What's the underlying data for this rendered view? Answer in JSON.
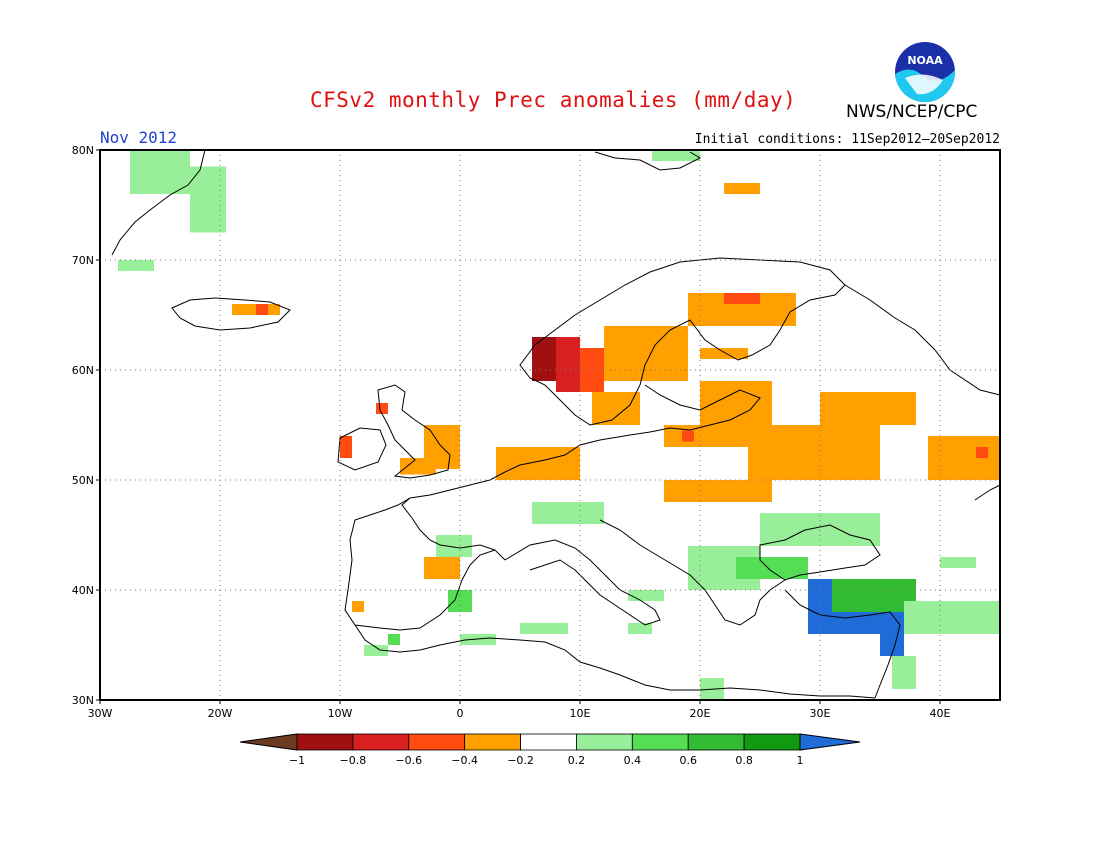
{
  "header": {
    "title": "CFSv2 monthly Prec anomalies (mm/day)",
    "organization": "NWS/NCEP/CPC",
    "logo_text": "NOAA",
    "month": "Nov 2012",
    "initial_conditions": "Initial conditions: 11Sep2012–20Sep2012"
  },
  "map": {
    "lon_range": [
      -30,
      45
    ],
    "lat_range": [
      30,
      80
    ],
    "grid_lines": "dotted",
    "lat_labels": [
      "80N",
      "70N",
      "60N",
      "50N",
      "40N",
      "30N"
    ],
    "lat_values": [
      80,
      70,
      60,
      50,
      40,
      30
    ],
    "lon_labels": [
      "30W",
      "20W",
      "10W",
      "0",
      "10E",
      "20E",
      "30E",
      "40E"
    ],
    "lon_values": [
      -30,
      -20,
      -10,
      0,
      10,
      20,
      30,
      40
    ],
    "anomaly_regions": [
      {
        "lon": [
          -27.5,
          -22.5
        ],
        "lat": [
          76,
          80
        ],
        "value": 0.3
      },
      {
        "lon": [
          -22.5,
          -19.5
        ],
        "lat": [
          72.5,
          78.5
        ],
        "value": 0.3
      },
      {
        "lon": [
          -28.5,
          -25.5
        ],
        "lat": [
          69,
          70
        ],
        "value": 0.3
      },
      {
        "lon": [
          -19,
          -15
        ],
        "lat": [
          65,
          66
        ],
        "value": -0.3
      },
      {
        "lon": [
          -17,
          -16
        ],
        "lat": [
          65,
          66
        ],
        "value": -0.5
      },
      {
        "lon": [
          16,
          20
        ],
        "lat": [
          79,
          80
        ],
        "value": 0.3
      },
      {
        "lon": [
          22,
          25
        ],
        "lat": [
          76,
          77
        ],
        "value": -0.3
      },
      {
        "lon": [
          6,
          8
        ],
        "lat": [
          59,
          63
        ],
        "value": -0.9
      },
      {
        "lon": [
          8,
          10
        ],
        "lat": [
          58,
          63
        ],
        "value": -0.7
      },
      {
        "lon": [
          10,
          12
        ],
        "lat": [
          58,
          62
        ],
        "value": -0.5
      },
      {
        "lon": [
          12,
          19
        ],
        "lat": [
          59,
          64
        ],
        "value": -0.3
      },
      {
        "lon": [
          11,
          15
        ],
        "lat": [
          55,
          58
        ],
        "value": -0.3
      },
      {
        "lon": [
          19,
          28
        ],
        "lat": [
          64,
          67
        ],
        "value": -0.3
      },
      {
        "lon": [
          22,
          25
        ],
        "lat": [
          66,
          67
        ],
        "value": -0.5
      },
      {
        "lon": [
          20,
          24
        ],
        "lat": [
          61,
          62
        ],
        "value": -0.3
      },
      {
        "lon": [
          20,
          26
        ],
        "lat": [
          55,
          59
        ],
        "value": -0.3
      },
      {
        "lon": [
          17,
          24
        ],
        "lat": [
          53,
          55
        ],
        "value": -0.3
      },
      {
        "lon": [
          18.5,
          19.5
        ],
        "lat": [
          53.5,
          54.5
        ],
        "value": -0.5
      },
      {
        "lon": [
          24,
          35
        ],
        "lat": [
          50,
          55
        ],
        "value": -0.3
      },
      {
        "lon": [
          30,
          38
        ],
        "lat": [
          55,
          58
        ],
        "value": -0.3
      },
      {
        "lon": [
          39,
          45
        ],
        "lat": [
          50,
          54
        ],
        "value": -0.3
      },
      {
        "lon": [
          43,
          44
        ],
        "lat": [
          52,
          53
        ],
        "value": -0.5
      },
      {
        "lon": [
          -3,
          0
        ],
        "lat": [
          51,
          55
        ],
        "value": -0.3
      },
      {
        "lon": [
          -5,
          -2
        ],
        "lat": [
          50.5,
          52
        ],
        "value": -0.3
      },
      {
        "lon": [
          -10,
          -9
        ],
        "lat": [
          52,
          54
        ],
        "value": -0.5
      },
      {
        "lon": [
          -7,
          -6
        ],
        "lat": [
          56,
          57
        ],
        "value": -0.5
      },
      {
        "lon": [
          3,
          10
        ],
        "lat": [
          50,
          53
        ],
        "value": -0.3
      },
      {
        "lon": [
          17,
          26
        ],
        "lat": [
          48,
          50
        ],
        "value": -0.3
      },
      {
        "lon": [
          -3,
          0
        ],
        "lat": [
          41,
          43
        ],
        "value": -0.3
      },
      {
        "lon": [
          -9,
          -8
        ],
        "lat": [
          38,
          39
        ],
        "value": -0.3
      },
      {
        "lon": [
          6,
          12
        ],
        "lat": [
          46,
          48
        ],
        "value": 0.3
      },
      {
        "lon": [
          -2,
          1
        ],
        "lat": [
          43,
          45
        ],
        "value": 0.3
      },
      {
        "lon": [
          19,
          25
        ],
        "lat": [
          40,
          44
        ],
        "value": 0.3
      },
      {
        "lon": [
          23,
          29
        ],
        "lat": [
          41,
          43
        ],
        "value": 0.5
      },
      {
        "lon": [
          25,
          35
        ],
        "lat": [
          44,
          47
        ],
        "value": 0.3
      },
      {
        "lon": [
          29,
          33
        ],
        "lat": [
          36,
          41
        ],
        "value": 1.1
      },
      {
        "lon": [
          33,
          37
        ],
        "lat": [
          36,
          38
        ],
        "value": 1.1
      },
      {
        "lon": [
          35,
          37
        ],
        "lat": [
          34,
          37
        ],
        "value": 1.1
      },
      {
        "lon": [
          31,
          38
        ],
        "lat": [
          38,
          41
        ],
        "value": 0.7
      },
      {
        "lon": [
          37,
          45
        ],
        "lat": [
          36,
          39
        ],
        "value": 0.3
      },
      {
        "lon": [
          36,
          38
        ],
        "lat": [
          31,
          34
        ],
        "value": 0.3
      },
      {
        "lon": [
          40,
          43
        ],
        "lat": [
          42,
          43
        ],
        "value": 0.3
      },
      {
        "lon": [
          -1,
          1
        ],
        "lat": [
          38,
          40
        ],
        "value": 0.5
      },
      {
        "lon": [
          -6,
          -5
        ],
        "lat": [
          35,
          36
        ],
        "value": 0.5
      },
      {
        "lon": [
          -8,
          -6
        ],
        "lat": [
          34,
          35
        ],
        "value": 0.3
      },
      {
        "lon": [
          0,
          3
        ],
        "lat": [
          35,
          36
        ],
        "value": 0.3
      },
      {
        "lon": [
          5,
          9
        ],
        "lat": [
          36,
          37
        ],
        "value": 0.3
      },
      {
        "lon": [
          20,
          22
        ],
        "lat": [
          30,
          32
        ],
        "value": 0.3
      },
      {
        "lon": [
          14,
          17
        ],
        "lat": [
          39,
          40
        ],
        "value": 0.3
      },
      {
        "lon": [
          14,
          16
        ],
        "lat": [
          36,
          37
        ],
        "value": 0.3
      }
    ]
  },
  "legend": {
    "tick_labels": [
      "-1",
      "-0.8",
      "-0.6",
      "-0.4",
      "-0.2",
      "0.2",
      "0.4",
      "0.6",
      "0.8",
      "1"
    ],
    "colors": [
      "#6b3a1f",
      "#a01010",
      "#d82020",
      "#ff4a10",
      "#ffa000",
      "#ffffff",
      "#99ee99",
      "#55dd55",
      "#33bb33",
      "#119911",
      "#1f6bd8"
    ]
  }
}
